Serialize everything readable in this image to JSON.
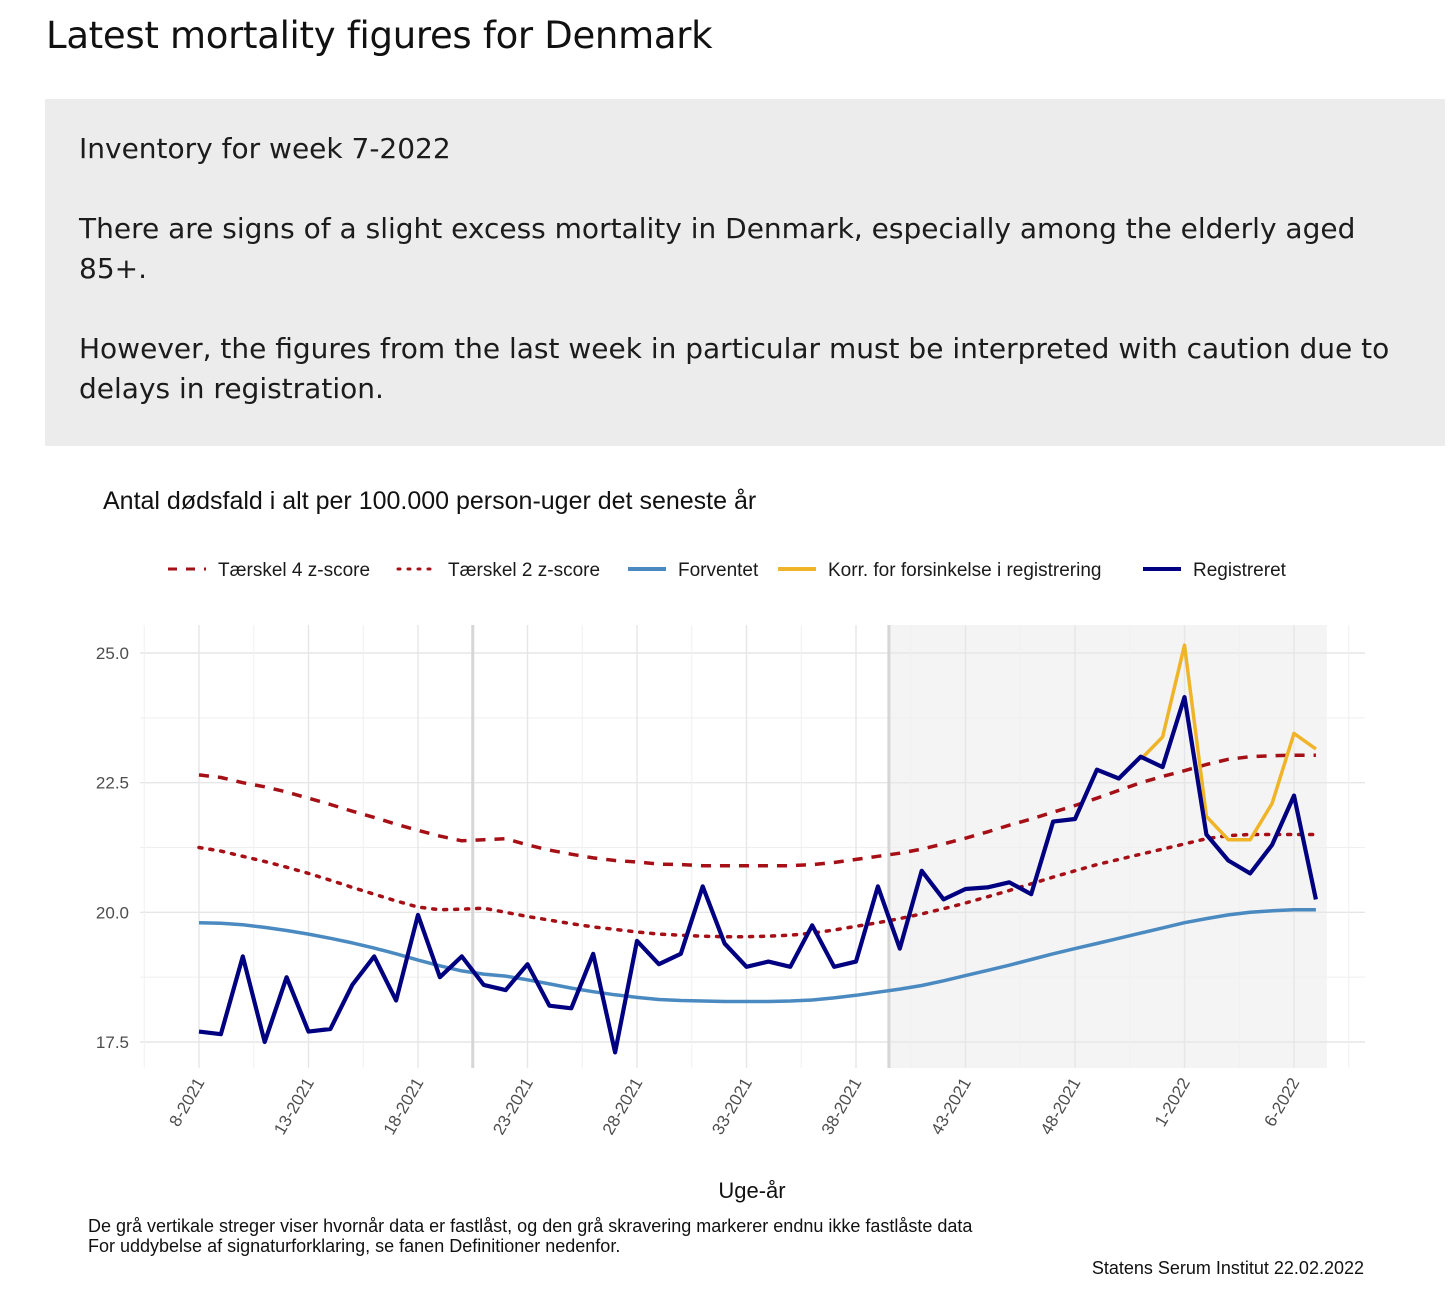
{
  "page": {
    "title": "Latest mortality figures for Denmark",
    "info": {
      "heading": "Inventory for week 7-2022",
      "para1": "There are signs of a slight excess mortality in Denmark, especially among the elderly aged 85+.",
      "para2": "However, the figures from the last week in particular must be interpreted with caution due to delays in registration."
    }
  },
  "chart_data": {
    "type": "line",
    "title": "Antal dødsfald i alt per 100.000 person-uger det seneste år",
    "xlabel": "Uge-år",
    "ylabel": "",
    "ylim": [
      17.0,
      25.5
    ],
    "yticks": [
      17.5,
      20.0,
      22.5,
      25.0
    ],
    "ytick_labels": [
      "17.5",
      "20.0",
      "22.5",
      "25.0"
    ],
    "xtick_labels": [
      "8-2021",
      "13-2021",
      "18-2021",
      "23-2021",
      "28-2021",
      "33-2021",
      "38-2021",
      "43-2021",
      "48-2021",
      "1-2022",
      "6-2022"
    ],
    "xtick_index": [
      0,
      5,
      10,
      15,
      20,
      25,
      30,
      35,
      40,
      45,
      50
    ],
    "weeks": [
      "8-2021",
      "9-2021",
      "10-2021",
      "11-2021",
      "12-2021",
      "13-2021",
      "14-2021",
      "15-2021",
      "16-2021",
      "17-2021",
      "18-2021",
      "19-2021",
      "20-2021",
      "21-2021",
      "22-2021",
      "23-2021",
      "24-2021",
      "25-2021",
      "26-2021",
      "27-2021",
      "28-2021",
      "29-2021",
      "30-2021",
      "31-2021",
      "32-2021",
      "33-2021",
      "34-2021",
      "35-2021",
      "36-2021",
      "37-2021",
      "38-2021",
      "39-2021",
      "40-2021",
      "41-2021",
      "42-2021",
      "43-2021",
      "44-2021",
      "45-2021",
      "46-2021",
      "47-2021",
      "48-2021",
      "49-2021",
      "50-2021",
      "51-2021",
      "52-2021",
      "1-2022",
      "2-2022",
      "3-2022",
      "4-2022",
      "5-2022",
      "6-2022",
      "7-2022"
    ],
    "grid": true,
    "legend_position": "top",
    "shaded_region_label": "endnu ikke fastlåste data",
    "series": [
      {
        "name": "Tærskel 4 z-score",
        "style": "dashed",
        "color": "#a50f15",
        "values": [
          22.65,
          22.6,
          22.5,
          22.42,
          22.32,
          22.2,
          22.08,
          21.95,
          21.83,
          21.7,
          21.58,
          21.47,
          21.38,
          21.4,
          21.42,
          21.3,
          21.2,
          21.12,
          21.05,
          21.0,
          20.97,
          20.93,
          20.92,
          20.9,
          20.9,
          20.9,
          20.9,
          20.9,
          20.92,
          20.96,
          21.02,
          21.08,
          21.14,
          21.22,
          21.32,
          21.43,
          21.55,
          21.68,
          21.8,
          21.93,
          22.06,
          22.2,
          22.35,
          22.5,
          22.62,
          22.73,
          22.85,
          22.95,
          23.0,
          23.02,
          23.03,
          23.03
        ]
      },
      {
        "name": "Tærskel 2 z-score",
        "style": "dotted",
        "color": "#a50f15",
        "values": [
          21.25,
          21.18,
          21.08,
          20.98,
          20.87,
          20.75,
          20.62,
          20.48,
          20.35,
          20.22,
          20.1,
          20.05,
          20.06,
          20.08,
          20.0,
          19.92,
          19.85,
          19.78,
          19.72,
          19.67,
          19.62,
          19.58,
          19.56,
          19.54,
          19.53,
          19.53,
          19.54,
          19.56,
          19.6,
          19.66,
          19.73,
          19.8,
          19.88,
          19.97,
          20.07,
          20.18,
          20.3,
          20.42,
          20.55,
          20.68,
          20.8,
          20.92,
          21.02,
          21.12,
          21.22,
          21.32,
          21.42,
          21.48,
          21.5,
          21.5,
          21.5,
          21.5
        ]
      },
      {
        "name": "Forventet",
        "style": "solid",
        "color": "#4a8ac0",
        "values": [
          19.8,
          19.79,
          19.76,
          19.71,
          19.65,
          19.58,
          19.5,
          19.41,
          19.31,
          19.2,
          19.08,
          18.97,
          18.87,
          18.81,
          18.77,
          18.7,
          18.62,
          18.54,
          18.47,
          18.41,
          18.36,
          18.32,
          18.3,
          18.29,
          18.28,
          18.28,
          18.28,
          18.29,
          18.31,
          18.35,
          18.4,
          18.46,
          18.52,
          18.59,
          18.68,
          18.78,
          18.88,
          18.98,
          19.09,
          19.2,
          19.3,
          19.4,
          19.5,
          19.6,
          19.7,
          19.8,
          19.88,
          19.95,
          20.0,
          20.03,
          20.05,
          20.05
        ]
      },
      {
        "name": "Korr. for forsinkelse i registrering",
        "style": "solid",
        "color": "#f0b429",
        "x_start_index": 43,
        "values": [
          22.95,
          23.38,
          25.15,
          21.85,
          21.4,
          21.4,
          22.1,
          23.45,
          23.15
        ]
      },
      {
        "name": "Registreret",
        "style": "solid",
        "color": "#000080",
        "values": [
          17.7,
          17.65,
          19.15,
          17.5,
          18.75,
          17.7,
          17.75,
          18.6,
          19.15,
          18.3,
          19.95,
          18.75,
          19.15,
          18.6,
          18.5,
          19.0,
          18.2,
          18.15,
          19.2,
          17.3,
          19.45,
          19.0,
          19.2,
          20.5,
          19.4,
          18.95,
          19.05,
          18.95,
          19.75,
          18.95,
          19.05,
          20.5,
          19.3,
          20.8,
          20.25,
          20.45,
          20.48,
          20.58,
          20.35,
          21.75,
          21.8,
          22.75,
          22.58,
          23.0,
          22.8,
          24.15,
          21.5,
          21.0,
          20.75,
          21.3,
          22.25,
          20.25
        ]
      }
    ],
    "caption_lines": [
      "De grå vertikale streger viser hvornår data er fastlåst, og den grå skravering markerer endnu ikke fastlåste data",
      "For uddybelse af signaturforklaring, se fanen Definitioner nedenfor."
    ],
    "source": "Statens Serum Institut  22.02.2022",
    "colors": {
      "background": "#ffffff",
      "shade": "#f4f4f4",
      "grid": "#e6e6e6",
      "vline": "#d6d6d6"
    }
  }
}
